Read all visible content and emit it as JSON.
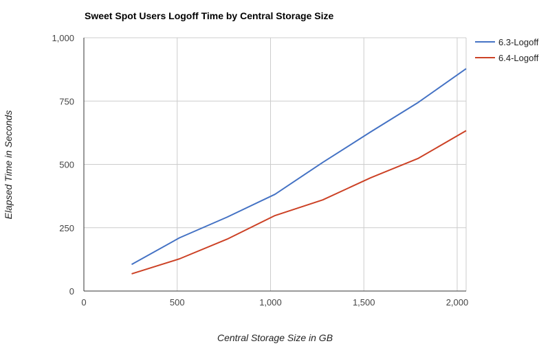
{
  "chart_data": {
    "type": "line",
    "title": "Sweet Spot Users Logoff Time by Central Storage Size",
    "xlabel": "Central Storage Size in GB",
    "ylabel": "Elapsed Time in Seconds",
    "xlim": [
      0,
      2048
    ],
    "ylim": [
      0,
      1000
    ],
    "xticks": [
      0,
      500,
      1000,
      1500,
      2000
    ],
    "xtick_labels": [
      "0",
      "500",
      "1,000",
      "1,500",
      "2,000"
    ],
    "yticks": [
      0,
      250,
      500,
      750,
      1000
    ],
    "ytick_labels": [
      "0",
      "250",
      "500",
      "750",
      "1,000"
    ],
    "grid": true,
    "legend_position": "right",
    "x": [
      256,
      512,
      768,
      1024,
      1280,
      1536,
      1792,
      2048
    ],
    "series": [
      {
        "name": "6.3-Logoff",
        "color": "#4472c4",
        "values": [
          105,
          210,
          292,
          382,
          508,
          628,
          745,
          878
        ]
      },
      {
        "name": "6.4-Logoff",
        "color": "#cc4125",
        "values": [
          68,
          127,
          205,
          298,
          360,
          447,
          524,
          633
        ]
      }
    ]
  }
}
